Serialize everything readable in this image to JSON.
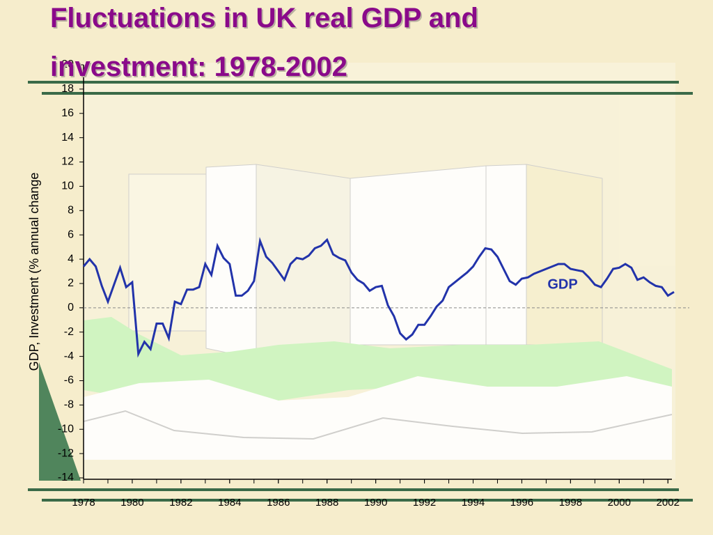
{
  "chart_data": {
    "type": "line",
    "title": [
      "Fluctuations in UK real GDP and",
      "investment: 1978-2002"
    ],
    "y_label": "GDP, Investment (% annual change",
    "annotation": "GDP",
    "xlim": [
      1978,
      2002.25
    ],
    "ylim": [
      -14,
      20
    ],
    "xticks": [
      1978,
      1980,
      1982,
      1984,
      1986,
      1988,
      1990,
      1992,
      1994,
      1996,
      1998,
      2000,
      2002
    ],
    "yticks": [
      -14,
      -12,
      -10,
      -8,
      -6,
      -4,
      -2,
      0,
      2,
      4,
      6,
      8,
      10,
      12,
      14,
      16,
      18,
      20
    ],
    "x": [
      1978,
      1978.25,
      1978.5,
      1978.75,
      1979,
      1979.25,
      1979.5,
      1979.75,
      1980,
      1980.25,
      1980.5,
      1980.75,
      1981,
      1981.25,
      1981.5,
      1981.75,
      1982,
      1982.25,
      1982.5,
      1982.75,
      1983,
      1983.25,
      1983.5,
      1983.75,
      1984,
      1984.25,
      1984.5,
      1984.75,
      1985,
      1985.25,
      1985.5,
      1985.75,
      1986,
      1986.25,
      1986.5,
      1986.75,
      1987,
      1987.25,
      1987.5,
      1987.75,
      1988,
      1988.25,
      1988.5,
      1988.75,
      1989,
      1989.25,
      1989.5,
      1989.75,
      1990,
      1990.25,
      1990.5,
      1990.75,
      1991,
      1991.25,
      1991.5,
      1991.75,
      1992,
      1992.25,
      1992.5,
      1992.75,
      1993,
      1993.25,
      1993.5,
      1993.75,
      1994,
      1994.25,
      1994.5,
      1994.75,
      1995,
      1995.25,
      1995.5,
      1995.75,
      1996,
      1996.25,
      1996.5,
      1996.75,
      1997,
      1997.25,
      1997.5,
      1997.75,
      1998,
      1998.25,
      1998.5,
      1998.75,
      1999,
      1999.25,
      1999.5,
      1999.75,
      2000,
      2000.25,
      2000.5,
      2000.75,
      2001,
      2001.25,
      2001.5,
      2001.75,
      2002,
      2002.25
    ],
    "series": [
      {
        "name": "GDP",
        "color": "#2233aa",
        "values": [
          3.4,
          4.0,
          3.4,
          1.8,
          0.5,
          1.9,
          3.3,
          1.7,
          2.1,
          -3.8,
          -2.8,
          -3.4,
          -1.3,
          -1.3,
          -2.5,
          0.5,
          0.3,
          1.5,
          1.5,
          1.7,
          3.6,
          2.7,
          5.1,
          4.1,
          3.6,
          1.0,
          1.0,
          1.4,
          2.2,
          5.5,
          4.2,
          3.7,
          3.0,
          2.3,
          3.6,
          4.1,
          4.0,
          4.3,
          4.9,
          5.1,
          5.6,
          4.4,
          4.1,
          3.9,
          2.9,
          2.3,
          2.0,
          1.4,
          1.7,
          1.8,
          0.2,
          -0.7,
          -2.1,
          -2.6,
          -2.2,
          -1.4,
          -1.4,
          -0.7,
          0.1,
          0.6,
          1.7,
          2.1,
          2.5,
          2.9,
          3.4,
          4.2,
          4.9,
          4.8,
          4.2,
          3.2,
          2.2,
          1.9,
          2.4,
          2.5,
          2.8,
          3.0,
          3.2,
          3.4,
          3.6,
          3.6,
          3.2,
          3.1,
          3.0,
          2.5,
          1.9,
          1.7,
          2.4,
          3.2,
          3.3,
          3.6,
          3.3,
          2.3,
          2.5,
          2.1,
          1.8,
          1.7,
          1.0,
          1.3
        ]
      }
    ]
  }
}
